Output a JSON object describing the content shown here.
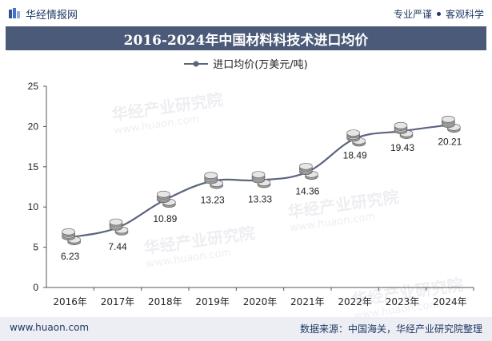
{
  "header": {
    "brand": "华经情报网",
    "slogan_left": "专业严谨",
    "slogan_right": "客观科学"
  },
  "watermark": {
    "text": "华经产业研究院",
    "url": "www.huaon.com"
  },
  "footer": {
    "website": "www.huaon.com",
    "source": "数据来源：中国海关，华经产业研究院整理"
  },
  "colors": {
    "title_bg": "#4a5a78",
    "line": "#5b6580",
    "brand": "#1f3864"
  },
  "chart_data": {
    "type": "line",
    "title": "2016-2024年中国材料科技术进口均价",
    "legend": "进口均价(万美元/吨)",
    "categories": [
      "2016年",
      "2017年",
      "2018年",
      "2019年",
      "2020年",
      "2021年",
      "2022年",
      "2023年",
      "2024年"
    ],
    "series": [
      {
        "name": "进口均价(万美元/吨)",
        "values": [
          6.23,
          7.44,
          10.89,
          13.23,
          13.33,
          14.36,
          18.49,
          19.43,
          20.21
        ]
      }
    ],
    "data_labels": [
      "6.23",
      "7.44",
      "10.89",
      "13.23",
      "13.33",
      "14.36",
      "18.49",
      "19.43",
      "20.21"
    ],
    "yticks": [
      "0",
      "5",
      "10",
      "15",
      "20",
      "25"
    ],
    "ylim": [
      0,
      25
    ],
    "xlabel": "",
    "ylabel": "",
    "grid": false,
    "legend_position": "top-center"
  }
}
